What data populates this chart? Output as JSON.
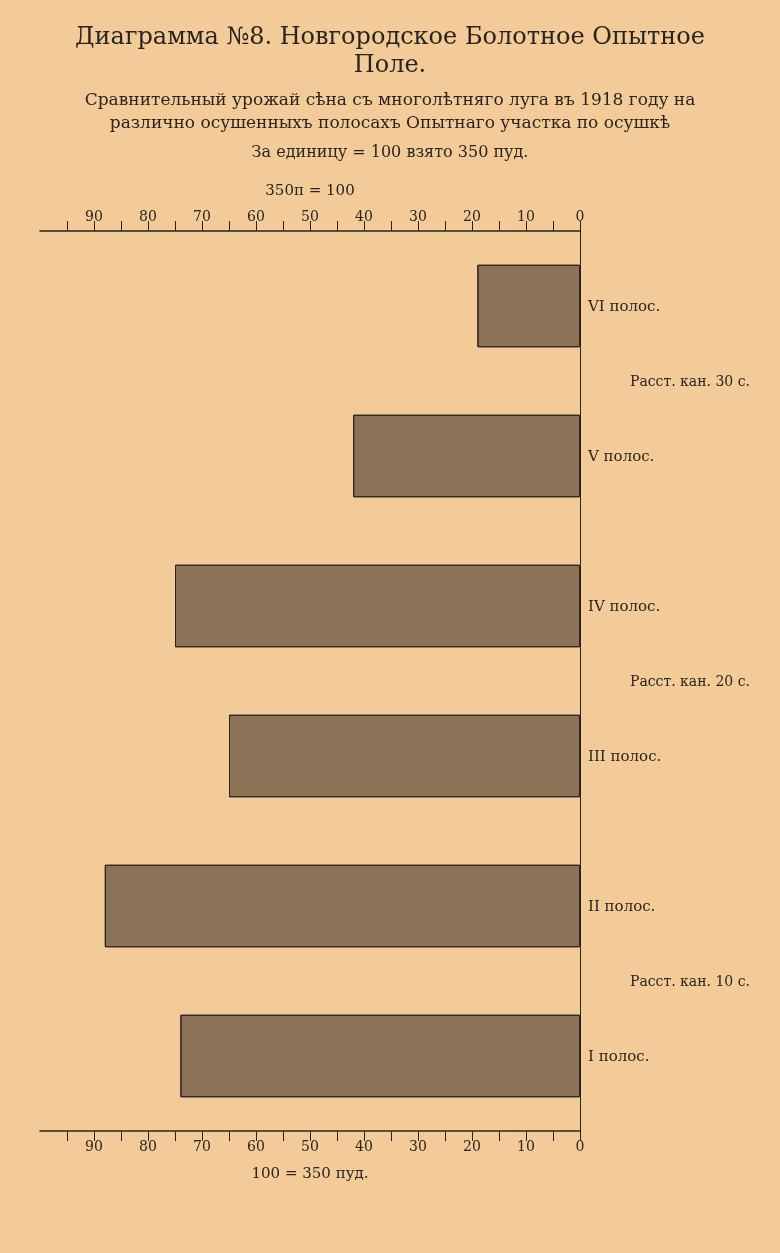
{
  "chart_data": {
    "type": "bar",
    "orientation": "horizontal",
    "title": "Диаграмма №8. Новгородское Болотное Опытное Поле.",
    "subtitle": "Сравнительный урожай сѣна съ многолѣтняго луга въ 1918 году на различно осушенныхъ полосахъ Опытнаго участка по осушкѣ",
    "categories": [
      "VI полос.",
      "V полос.",
      "IV полос.",
      "III полос.",
      "II полос.",
      "I полос."
    ],
    "values": [
      19,
      42,
      75,
      65,
      88,
      74
    ],
    "color": "#8c7358",
    "xlim": [
      100,
      0
    ],
    "xticks": [
      0,
      {
        "value": 5,
        "label": null
      },
      10,
      {
        "value": 15,
        "label": null
      },
      20,
      {
        "value": 25,
        "label": null
      },
      30,
      {
        "value": 35,
        "label": null
      },
      40,
      {
        "value": 45,
        "label": null
      },
      50,
      {
        "value": 55,
        "label": null
      },
      60,
      {
        "value": 65,
        "label": null
      },
      70,
      {
        "value": 75,
        "label": null
      },
      80,
      {
        "value": 85,
        "label": null
      },
      90,
      {
        "value": 95,
        "label": null
      }
    ],
    "x2lim": [
      100,
      0
    ],
    "x2ticks": [
      0,
      {
        "value": 5,
        "label": null
      },
      10,
      {
        "value": 15,
        "label": null
      },
      20,
      {
        "value": 25,
        "label": null
      },
      30,
      {
        "value": 35,
        "label": null
      },
      40,
      {
        "value": 45,
        "label": null
      },
      50,
      {
        "value": 55,
        "label": null
      },
      60,
      {
        "value": 65,
        "label": null
      },
      70,
      {
        "value": 75,
        "label": null
      },
      80,
      {
        "value": 85,
        "label": null
      },
      90,
      {
        "value": 95,
        "label": null
      }
    ],
    "xlabel": "100 = 350 пуд.",
    "x2label": "350п = 100",
    "annotations": [
      "За единицу = 100 взято 350 пуд.",
      "Расст. кан. 30 с.",
      "Расст. кан. 20 с.",
      "Расст. кан. 10 с."
    ]
  }
}
